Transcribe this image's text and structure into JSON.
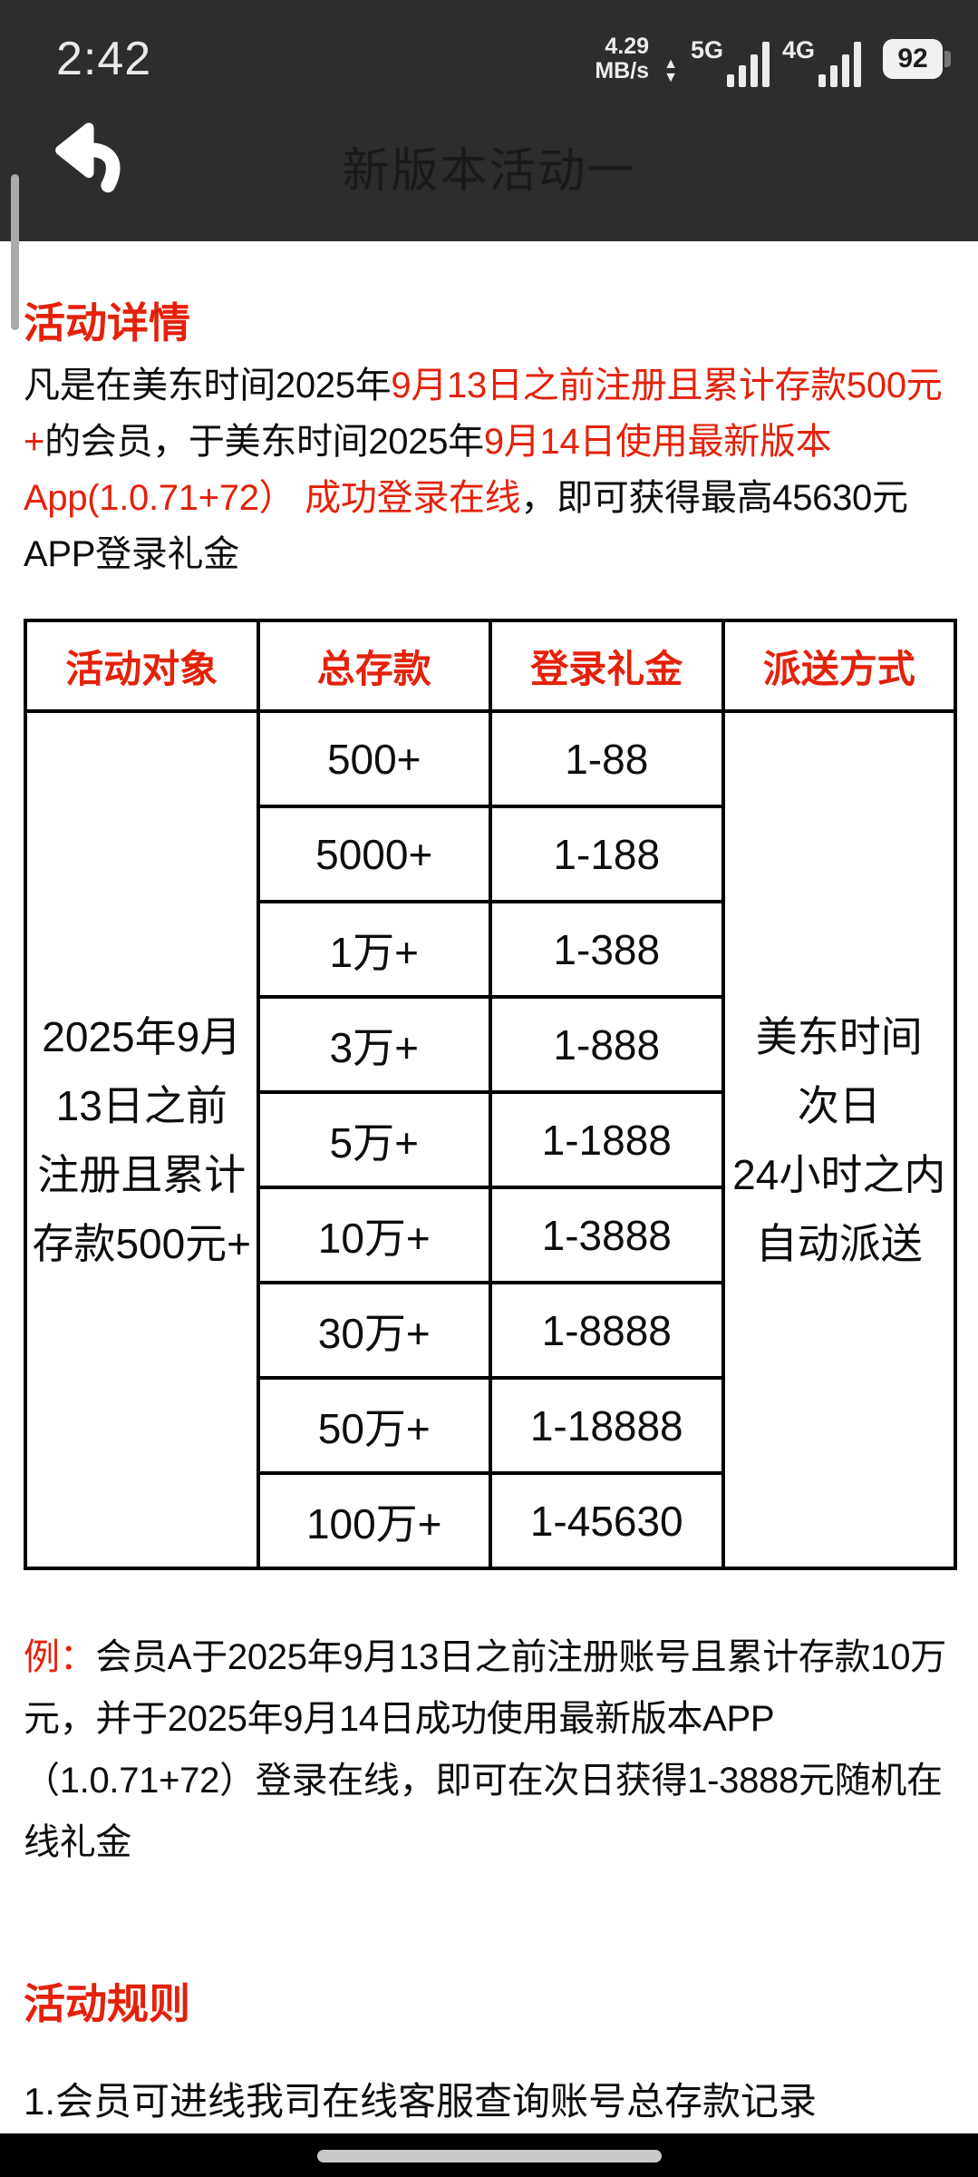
{
  "status_bar": {
    "time": "2:42",
    "network_speed_value": "4.29",
    "network_speed_unit": "MB/s",
    "updown_arrows_icon": "▲▼",
    "sim1_label": "5G",
    "sim2_label": "4G",
    "battery_level": "92"
  },
  "header": {
    "title": "新版本活动一",
    "back_icon": "back-arrow-icon"
  },
  "content": {
    "details_heading": "活动详情",
    "intro_segments": [
      {
        "text": "凡是在美东时间2025年",
        "color": "black"
      },
      {
        "text": "9月13日之前注册且累计存款500元+",
        "color": "red"
      },
      {
        "text": "的会员，于美东时间2025年",
        "color": "black"
      },
      {
        "text": "9月14日使用最新版本App(1.0.71+72） 成功登录在线",
        "color": "red"
      },
      {
        "text": "，即可获得最高45630元APP登录礼金",
        "color": "black"
      }
    ],
    "table": {
      "headers": [
        "活动对象",
        "总存款",
        "登录礼金",
        "派送方式"
      ],
      "target_audience": [
        "2025年9月13日之前",
        "注册且累计存款500元+"
      ],
      "delivery_method": [
        "美东时间",
        "次日",
        "24小时之内",
        "自动派送"
      ],
      "rows": [
        {
          "deposit": "500+",
          "bonus": "1-88"
        },
        {
          "deposit": "5000+",
          "bonus": "1-188"
        },
        {
          "deposit": "1万+",
          "bonus": "1-388"
        },
        {
          "deposit": "3万+",
          "bonus": "1-888"
        },
        {
          "deposit": "5万+",
          "bonus": "1-1888"
        },
        {
          "deposit": "10万+",
          "bonus": "1-3888"
        },
        {
          "deposit": "30万+",
          "bonus": "1-8888"
        },
        {
          "deposit": "50万+",
          "bonus": "1-18888"
        },
        {
          "deposit": "100万+",
          "bonus": "1-45630"
        }
      ]
    },
    "example_segments": [
      {
        "text": "例：",
        "color": "red"
      },
      {
        "text": "会员A于2025年9月13日之前注册账号且累计存款10万元，并于2025年9月14日成功使用最新版本APP（1.0.71+72）登录在线，即可在次日获得1-3888元随机在线礼金",
        "color": "black"
      }
    ],
    "rules_heading": "活动规则",
    "rules": [
      "1.会员可进线我司在线客服查询账号总存款记录"
    ]
  },
  "colors": {
    "accent_red": "#e4210b",
    "top_bar_bg": "#2d2d2f",
    "footer_bg": "#000000",
    "content_bg": "#ffffff"
  }
}
